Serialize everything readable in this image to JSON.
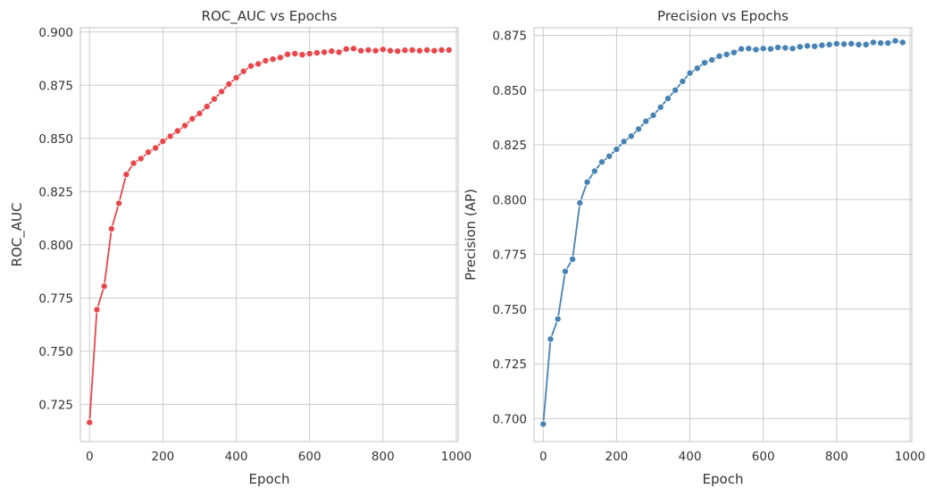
{
  "chart_data": [
    {
      "type": "line",
      "title": "ROC_AUC vs Epochs",
      "xlabel": "Epoch",
      "ylabel": "ROC_AUC",
      "xlim": [
        -25,
        1005
      ],
      "ylim": [
        0.7075,
        0.902
      ],
      "xticks": [
        0,
        200,
        400,
        600,
        800,
        1000
      ],
      "xtick_labels": [
        "0",
        "200",
        "400",
        "600",
        "800",
        "1000"
      ],
      "yticks": [
        0.725,
        0.75,
        0.775,
        0.8,
        0.825,
        0.85,
        0.875,
        0.9
      ],
      "ytick_labels": [
        "0.725",
        "0.750",
        "0.775",
        "0.800",
        "0.825",
        "0.850",
        "0.875",
        "0.900"
      ],
      "grid": true,
      "color": "#e8464a",
      "x": [
        0,
        20,
        40,
        60,
        80,
        100,
        120,
        140,
        160,
        180,
        200,
        220,
        240,
        260,
        280,
        300,
        320,
        340,
        360,
        380,
        400,
        420,
        440,
        460,
        480,
        500,
        520,
        540,
        560,
        580,
        600,
        620,
        640,
        660,
        680,
        700,
        720,
        740,
        760,
        780,
        800,
        820,
        840,
        860,
        880,
        900,
        920,
        940,
        960,
        980
      ],
      "values": [
        0.7165,
        0.7695,
        0.7805,
        0.8075,
        0.8195,
        0.833,
        0.8383,
        0.8405,
        0.8435,
        0.8455,
        0.8486,
        0.851,
        0.8535,
        0.856,
        0.8592,
        0.8617,
        0.865,
        0.8685,
        0.872,
        0.8755,
        0.8785,
        0.8815,
        0.884,
        0.885,
        0.8865,
        0.8872,
        0.888,
        0.8895,
        0.8898,
        0.8893,
        0.8898,
        0.8902,
        0.8905,
        0.891,
        0.8905,
        0.892,
        0.8922,
        0.8912,
        0.8915,
        0.8912,
        0.8918,
        0.8912,
        0.891,
        0.8914,
        0.8915,
        0.8912,
        0.8915,
        0.8912,
        0.8915,
        0.8915
      ]
    },
    {
      "type": "line",
      "title": "Precision vs Epochs",
      "xlabel": "Epoch",
      "ylabel": "Precision (AP)",
      "xlim": [
        -25,
        1005
      ],
      "ylim": [
        0.6895,
        0.8785
      ],
      "xticks": [
        0,
        200,
        400,
        600,
        800,
        1000
      ],
      "xtick_labels": [
        "0",
        "200",
        "400",
        "600",
        "800",
        "1000"
      ],
      "yticks": [
        0.7,
        0.725,
        0.75,
        0.775,
        0.8,
        0.825,
        0.85,
        0.875
      ],
      "ytick_labels": [
        "0.700",
        "0.725",
        "0.750",
        "0.775",
        "0.800",
        "0.825",
        "0.850",
        "0.875"
      ],
      "grid": true,
      "color": "#4682b4",
      "x": [
        0,
        20,
        40,
        60,
        80,
        100,
        120,
        140,
        160,
        180,
        200,
        220,
        240,
        260,
        280,
        300,
        320,
        340,
        360,
        380,
        400,
        420,
        440,
        460,
        480,
        500,
        520,
        540,
        560,
        580,
        600,
        620,
        640,
        660,
        680,
        700,
        720,
        740,
        760,
        780,
        800,
        820,
        840,
        860,
        880,
        900,
        920,
        940,
        960,
        980
      ],
      "values": [
        0.6975,
        0.7363,
        0.7455,
        0.7672,
        0.7728,
        0.7985,
        0.808,
        0.813,
        0.8172,
        0.8198,
        0.823,
        0.8265,
        0.829,
        0.8322,
        0.8358,
        0.8385,
        0.8422,
        0.8462,
        0.85,
        0.854,
        0.8578,
        0.86,
        0.8625,
        0.8638,
        0.8655,
        0.8663,
        0.8672,
        0.8688,
        0.869,
        0.8685,
        0.869,
        0.8688,
        0.8695,
        0.8693,
        0.869,
        0.8698,
        0.8702,
        0.87,
        0.8705,
        0.8708,
        0.8712,
        0.871,
        0.8712,
        0.8708,
        0.8708,
        0.8718,
        0.8715,
        0.8715,
        0.8725,
        0.8718
      ]
    }
  ]
}
